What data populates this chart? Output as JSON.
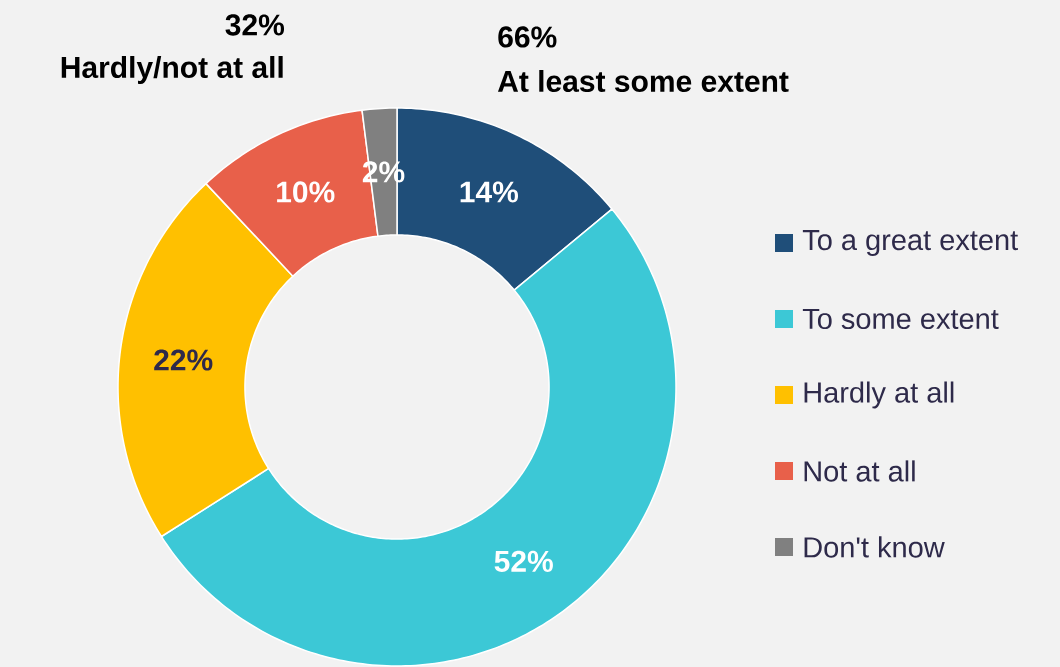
{
  "chart_data": {
    "type": "donut",
    "categories": [
      "To a great extent",
      "To some extent",
      "Hardly at all",
      "Not at all",
      "Don't know"
    ],
    "values": [
      14,
      52,
      22,
      10,
      2
    ],
    "colors": [
      "#1f4e79",
      "#3cc8d6",
      "#ffc000",
      "#e8604a",
      "#808080"
    ],
    "value_labels": [
      "14%",
      "52%",
      "22%",
      "10%",
      "2%"
    ],
    "legend": "right",
    "annotations": [
      "66%",
      "At least some extent",
      "32%",
      "Hardly/not at all"
    ]
  }
}
